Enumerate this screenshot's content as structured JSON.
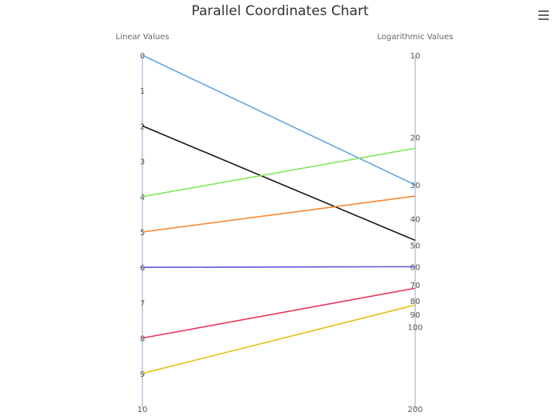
{
  "title": "Parallel Coordinates Chart",
  "menu": {
    "icon": "hamburger-menu-icon"
  },
  "chart_data": {
    "type": "parallel-coordinates",
    "title": "Parallel Coordinates Chart",
    "dimensions": [
      {
        "name": "Linear Values",
        "scale": "linear",
        "range": [
          0,
          10
        ],
        "ticks": [
          "0",
          "1",
          "2",
          "3",
          "4",
          "5",
          "6",
          "7",
          "8",
          "9",
          "10"
        ]
      },
      {
        "name": "Logarithmic Values",
        "scale": "log",
        "range": [
          10,
          200
        ],
        "ticks": [
          "10",
          "20",
          "30",
          "40",
          "50",
          "60",
          "70",
          "80",
          "90",
          "100",
          "200"
        ]
      }
    ],
    "series": [
      {
        "color": "#5fa6e6",
        "values": [
          0,
          30
        ]
      },
      {
        "color": "#1a1a1a",
        "values": [
          2,
          48
        ]
      },
      {
        "color": "#82e65a",
        "values": [
          4,
          22
        ]
      },
      {
        "color": "#f7862d",
        "values": [
          5,
          33
        ]
      },
      {
        "color": "#5a5ad6",
        "values": [
          6,
          60
        ]
      },
      {
        "color": "#e8375d",
        "values": [
          8,
          72
        ]
      },
      {
        "color": "#e4c21e",
        "values": [
          9,
          83
        ]
      }
    ],
    "grid": false,
    "legend": "none"
  }
}
